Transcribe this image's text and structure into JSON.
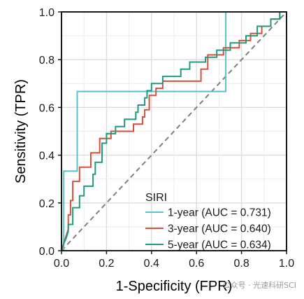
{
  "chart_data": {
    "type": "line",
    "xlabel": "1-Specificity (FPR)",
    "ylabel": "Sensitivity (TPR)",
    "xlim": [
      0,
      1
    ],
    "ylim": [
      0,
      1
    ],
    "xticks": [
      "0.0",
      "0.2",
      "0.4",
      "0.6",
      "0.8",
      "1.0"
    ],
    "yticks": [
      "0.0",
      "0.2",
      "0.4",
      "0.6",
      "0.8",
      "1.0"
    ],
    "grid": true,
    "legend_title": "SIRI",
    "legend_position": "bottom-right",
    "reference_line": {
      "x": [
        0,
        1
      ],
      "y": [
        0,
        1
      ],
      "style": "dashed",
      "color": "#7f7f7f"
    },
    "series": [
      {
        "name": "1-year (AUC = 0.731)",
        "color": "#5BC0CF",
        "x": [
          0,
          0.01,
          0.01,
          0.07,
          0.07,
          0.73,
          0.73,
          1.0
        ],
        "y": [
          0,
          0.0,
          0.333,
          0.333,
          0.667,
          0.667,
          1.0,
          1.0
        ]
      },
      {
        "name": "3-year (AUC = 0.640)",
        "color": "#D6513A",
        "x": [
          0,
          0.01,
          0.02,
          0.03,
          0.03,
          0.04,
          0.04,
          0.05,
          0.05,
          0.08,
          0.08,
          0.13,
          0.13,
          0.17,
          0.17,
          0.22,
          0.22,
          0.32,
          0.32,
          0.36,
          0.36,
          0.37,
          0.37,
          0.39,
          0.39,
          0.42,
          0.42,
          0.45,
          0.45,
          0.62,
          0.62,
          0.65,
          0.65,
          0.72,
          0.72,
          0.79,
          0.79,
          0.84,
          0.84,
          0.89,
          0.89,
          0.93,
          0.93,
          0.97,
          0.97,
          1.0
        ],
        "y": [
          0,
          0.03,
          0.06,
          0.09,
          0.15,
          0.15,
          0.21,
          0.21,
          0.29,
          0.29,
          0.35,
          0.35,
          0.41,
          0.41,
          0.47,
          0.47,
          0.5,
          0.5,
          0.53,
          0.53,
          0.56,
          0.56,
          0.59,
          0.59,
          0.65,
          0.65,
          0.68,
          0.68,
          0.71,
          0.71,
          0.76,
          0.76,
          0.82,
          0.82,
          0.85,
          0.85,
          0.88,
          0.88,
          0.91,
          0.91,
          0.94,
          0.94,
          0.97,
          0.97,
          1.0,
          1.0
        ]
      },
      {
        "name": "5-year (AUC = 0.634)",
        "color": "#1E9A80",
        "x": [
          0,
          0.01,
          0.02,
          0.03,
          0.03,
          0.05,
          0.05,
          0.08,
          0.08,
          0.1,
          0.1,
          0.14,
          0.14,
          0.15,
          0.15,
          0.18,
          0.18,
          0.2,
          0.2,
          0.24,
          0.24,
          0.28,
          0.28,
          0.33,
          0.33,
          0.34,
          0.34,
          0.37,
          0.37,
          0.38,
          0.38,
          0.4,
          0.4,
          0.45,
          0.45,
          0.53,
          0.53,
          0.57,
          0.57,
          0.64,
          0.64,
          0.69,
          0.69,
          0.75,
          0.75,
          0.82,
          0.82,
          0.87,
          0.87,
          0.93,
          0.93,
          0.97,
          0.97,
          1.0
        ],
        "y": [
          0,
          0.03,
          0.05,
          0.08,
          0.11,
          0.11,
          0.18,
          0.18,
          0.23,
          0.23,
          0.27,
          0.27,
          0.32,
          0.32,
          0.37,
          0.37,
          0.45,
          0.45,
          0.49,
          0.49,
          0.52,
          0.52,
          0.55,
          0.55,
          0.58,
          0.58,
          0.61,
          0.61,
          0.64,
          0.64,
          0.67,
          0.67,
          0.7,
          0.7,
          0.73,
          0.73,
          0.76,
          0.76,
          0.79,
          0.79,
          0.81,
          0.81,
          0.84,
          0.84,
          0.87,
          0.87,
          0.9,
          0.9,
          0.94,
          0.94,
          0.97,
          0.97,
          1.0,
          1.0
        ]
      }
    ]
  },
  "watermark": "公众号 · 光速科研SCI"
}
